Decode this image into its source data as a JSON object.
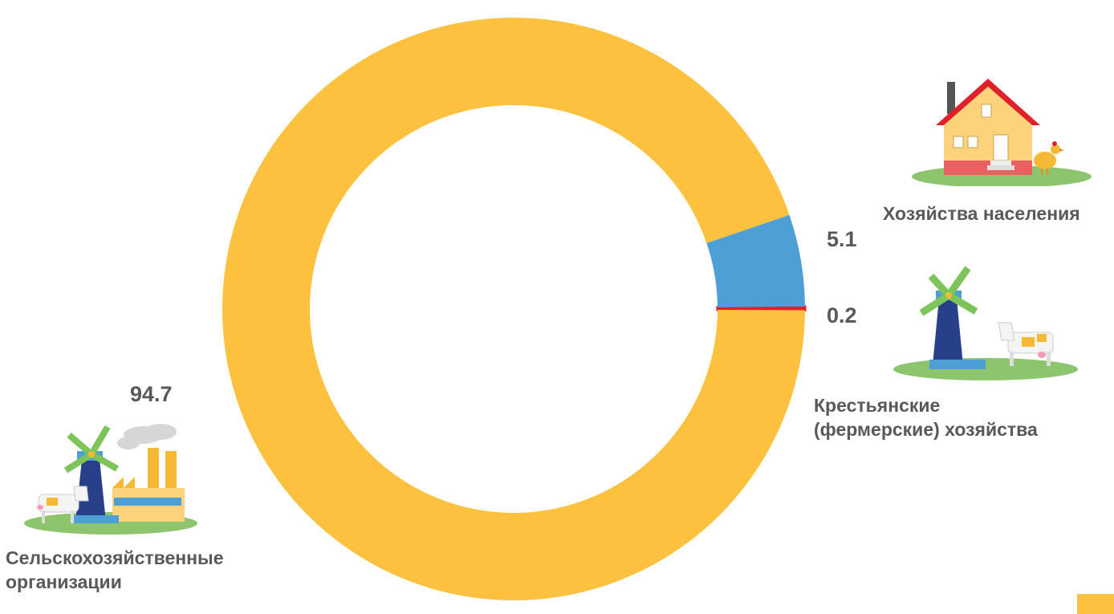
{
  "colors": {
    "agri_orgs": "#fcc23f",
    "households": "#4f9fd7",
    "farms": "#e0202a",
    "label_text": "#595959"
  },
  "chart_data": {
    "type": "pie",
    "donut": true,
    "series": [
      {
        "category": "Сельскохозяйственные организации",
        "value": 94.7,
        "value_label": "94.7",
        "label_lines": [
          "Сельскохозяйственные",
          "организации"
        ],
        "color": "#fcc23f",
        "icon": "windmill-factory-cow-icon"
      },
      {
        "category": "Хозяйства населения",
        "value": 5.1,
        "value_label": "5.1",
        "label_lines": [
          "Хозяйства населения"
        ],
        "color": "#4f9fd7",
        "icon": "house-chicken-icon"
      },
      {
        "category": "Крестьянские (фермерские) хозяйства",
        "value": 0.2,
        "value_label": "0.2",
        "label_lines": [
          "Крестьянские",
          "(фермерские) хозяйства"
        ],
        "color": "#e0202a",
        "icon": "windmill-cow-icon"
      }
    ],
    "legend": "none"
  }
}
